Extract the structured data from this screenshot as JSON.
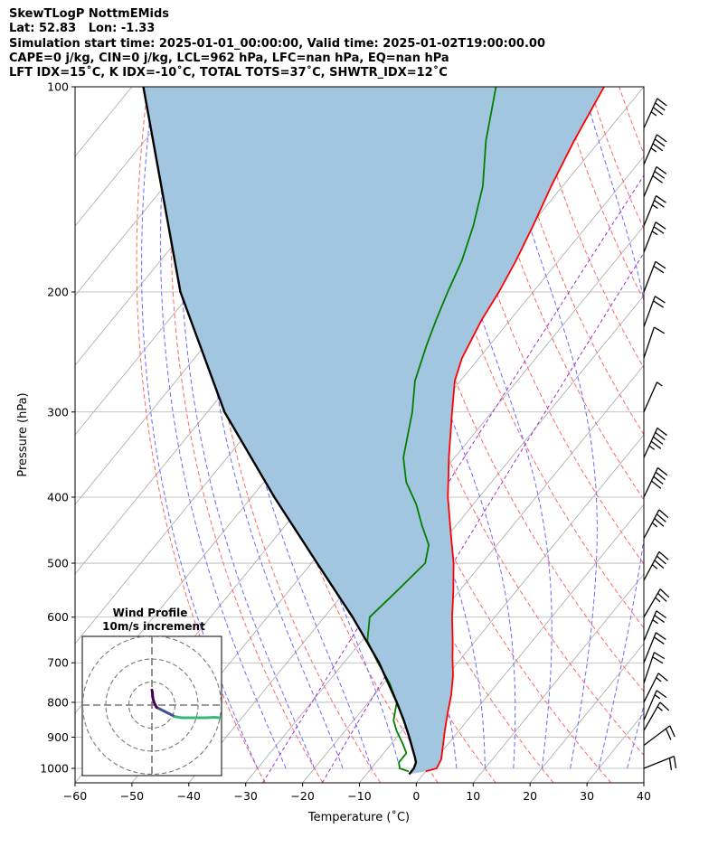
{
  "header": {
    "line1": "SkewTLogP NottmEMids",
    "line2": "Lat: 52.83   Lon: -1.33",
    "line3": "Simulation start time: 2025-01-01_00:00:00, Valid time: 2025-01-02T19:00:00.00",
    "line4": "CAPE=0 j/kg, CIN=0 j/kg, LCL=962 hPa, LFC=nan hPa, EQ=nan hPa",
    "line5": "LFT IDX=15˚C, K IDX=-10˚C, TOTAL TOTS=37˚C, SHWTR_IDX=12˚C"
  },
  "chart_data": {
    "type": "line",
    "subtype": "skew-t log-p",
    "xlabel": "Temperature (˚C)",
    "ylabel": "Pressure (hPa)",
    "xlim": [
      -60,
      40
    ],
    "ylim": [
      1050,
      100
    ],
    "yscale": "log",
    "xticks": [
      -60,
      -50,
      -40,
      -30,
      -20,
      -10,
      0,
      10,
      20,
      30,
      40
    ],
    "yticks": [
      1000,
      900,
      800,
      700,
      600,
      500,
      400,
      300,
      200,
      100
    ],
    "grid": true,
    "series": [
      {
        "role": "temperature",
        "color": "#ff0000",
        "points": [
          [
            1010,
            0
          ],
          [
            1000,
            1.5
          ],
          [
            970,
            1.0
          ],
          [
            930,
            -0.5
          ],
          [
            880,
            -2.5
          ],
          [
            830,
            -4.5
          ],
          [
            780,
            -6.5
          ],
          [
            730,
            -9
          ],
          [
            690,
            -11.5
          ],
          [
            650,
            -14
          ],
          [
            600,
            -17.5
          ],
          [
            550,
            -21
          ],
          [
            500,
            -25
          ],
          [
            450,
            -30
          ],
          [
            400,
            -35.5
          ],
          [
            350,
            -41
          ],
          [
            300,
            -47
          ],
          [
            270,
            -51
          ],
          [
            250,
            -53
          ],
          [
            220,
            -55
          ],
          [
            200,
            -56
          ],
          [
            180,
            -57.5
          ],
          [
            160,
            -59.5
          ],
          [
            140,
            -62
          ],
          [
            120,
            -64.5
          ],
          [
            100,
            -67
          ]
        ]
      },
      {
        "role": "dewpoint",
        "color": "#008000",
        "points": [
          [
            1010,
            -3
          ],
          [
            1000,
            -5
          ],
          [
            980,
            -6
          ],
          [
            950,
            -6
          ],
          [
            920,
            -8
          ],
          [
            880,
            -11
          ],
          [
            850,
            -13
          ],
          [
            800,
            -15
          ],
          [
            750,
            -19
          ],
          [
            700,
            -24
          ],
          [
            650,
            -29
          ],
          [
            600,
            -32
          ],
          [
            550,
            -31
          ],
          [
            500,
            -30
          ],
          [
            470,
            -32
          ],
          [
            440,
            -36
          ],
          [
            410,
            -40
          ],
          [
            380,
            -45
          ],
          [
            350,
            -49
          ],
          [
            300,
            -54
          ],
          [
            270,
            -58
          ],
          [
            240,
            -61
          ],
          [
            220,
            -63
          ],
          [
            200,
            -65
          ],
          [
            180,
            -67
          ],
          [
            160,
            -70
          ],
          [
            140,
            -74
          ],
          [
            120,
            -80
          ],
          [
            100,
            -86
          ]
        ]
      },
      {
        "role": "parcel",
        "color": "#000000",
        "points": [
          [
            1020,
            -2.5
          ],
          [
            1000,
            -2.5
          ],
          [
            980,
            -3
          ],
          [
            962,
            -4
          ],
          [
            900,
            -7.8
          ],
          [
            850,
            -11.2
          ],
          [
            800,
            -15
          ],
          [
            700,
            -23.8
          ],
          [
            600,
            -35
          ],
          [
            500,
            -49
          ],
          [
            400,
            -66
          ],
          [
            300,
            -87
          ],
          [
            200,
            -112
          ],
          [
            100,
            -148
          ]
        ]
      }
    ],
    "wind_barbs": [
      {
        "p": 1000,
        "u": -10,
        "v": -4
      },
      {
        "p": 925,
        "u": -8,
        "v": -6
      },
      {
        "p": 880,
        "u": -4,
        "v": -7
      },
      {
        "p": 850,
        "u": -3,
        "v": -7
      },
      {
        "p": 800,
        "u": -4,
        "v": -8
      },
      {
        "p": 750,
        "u": -3,
        "v": -9
      },
      {
        "p": 700,
        "u": -4,
        "v": -10
      },
      {
        "p": 650,
        "u": -5,
        "v": -12
      },
      {
        "p": 600,
        "u": -7,
        "v": -12
      },
      {
        "p": 530,
        "u": -8,
        "v": -15
      },
      {
        "p": 460,
        "u": -9,
        "v": -17
      },
      {
        "p": 400,
        "u": -9,
        "v": -19
      },
      {
        "p": 350,
        "u": -10,
        "v": -22
      },
      {
        "p": 300,
        "u": -11,
        "v": -25
      },
      {
        "p": 250,
        "u": -10,
        "v": -30
      },
      {
        "p": 225,
        "u": -12,
        "v": -33
      },
      {
        "p": 200,
        "u": -13,
        "v": -34
      },
      {
        "p": 175,
        "u": -14,
        "v": -36
      },
      {
        "p": 160,
        "u": -15,
        "v": -37
      },
      {
        "p": 145,
        "u": -16,
        "v": -38
      },
      {
        "p": 130,
        "u": -17,
        "v": -39
      },
      {
        "p": 115,
        "u": -18,
        "v": -40
      }
    ],
    "hodograph": {
      "title_line1": "Wind Profile",
      "title_line2": "10m/s increment",
      "rings_ms": [
        10,
        20,
        30
      ],
      "path_uv": [
        [
          2,
          -1
        ],
        [
          4,
          -2
        ],
        [
          6,
          -3
        ],
        [
          8,
          -4
        ],
        [
          10,
          -5
        ],
        [
          13,
          -5.5
        ],
        [
          17,
          -5.5
        ],
        [
          21,
          -5.5
        ],
        [
          24,
          -5.5
        ],
        [
          27,
          -5.3
        ],
        [
          29,
          -5.5
        ],
        [
          31,
          -5.8
        ],
        [
          32,
          -6
        ]
      ],
      "path_uv_low": [
        [
          2,
          -1
        ],
        [
          1,
          1
        ],
        [
          0.5,
          2.5
        ],
        [
          0.3,
          4
        ],
        [
          0.2,
          5.5
        ],
        [
          0,
          6.5
        ]
      ]
    }
  }
}
